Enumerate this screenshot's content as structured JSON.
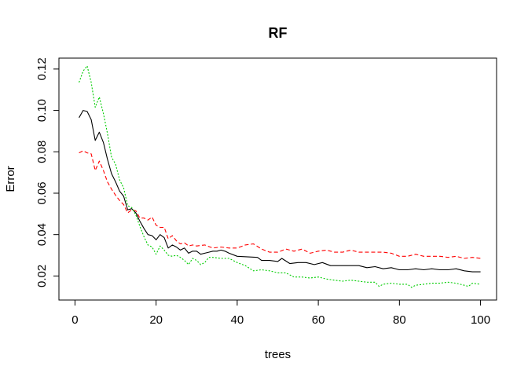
{
  "chart_data": {
    "type": "line",
    "title": "RF",
    "xlabel": "trees",
    "ylabel": "Error",
    "xlim": [
      -3.96,
      103.96
    ],
    "ylim": [
      0.00838,
      0.12527
    ],
    "x_ticks": [
      0,
      20,
      40,
      60,
      80,
      100
    ],
    "x_tick_labels": [
      "0",
      "20",
      "40",
      "60",
      "80",
      "100"
    ],
    "y_ticks": [
      0.02,
      0.04,
      0.06,
      0.08,
      0.1,
      0.12
    ],
    "y_tick_labels": [
      "0.02",
      "0.04",
      "0.06",
      "0.08",
      "0.10",
      "0.12"
    ],
    "grid": false,
    "legend": "none",
    "series": [
      {
        "color": "#000000",
        "dash": "solid",
        "points": [
          [
            1,
            0.0965
          ],
          [
            2,
            0.1
          ],
          [
            3,
            0.0995
          ],
          [
            4,
            0.0955
          ],
          [
            5,
            0.0855
          ],
          [
            6,
            0.0895
          ],
          [
            7,
            0.0845
          ],
          [
            8,
            0.0765
          ],
          [
            9,
            0.0695
          ],
          [
            10,
            0.0655
          ],
          [
            11,
            0.061
          ],
          [
            12,
            0.0585
          ],
          [
            13,
            0.052
          ],
          [
            14,
            0.0525
          ],
          [
            15,
            0.0505
          ],
          [
            16,
            0.0465
          ],
          [
            17,
            0.043
          ],
          [
            18,
            0.04
          ],
          [
            19,
            0.0395
          ],
          [
            20,
            0.0375
          ],
          [
            21,
            0.04
          ],
          [
            22,
            0.0385
          ],
          [
            23,
            0.0335
          ],
          [
            24,
            0.035
          ],
          [
            25,
            0.034
          ],
          [
            26,
            0.0325
          ],
          [
            27,
            0.0335
          ],
          [
            28,
            0.031
          ],
          [
            29,
            0.032
          ],
          [
            30,
            0.032
          ],
          [
            31,
            0.0305
          ],
          [
            32,
            0.031
          ],
          [
            33,
            0.0315
          ],
          [
            34,
            0.032
          ],
          [
            35,
            0.032
          ],
          [
            36,
            0.0325
          ],
          [
            37,
            0.032
          ],
          [
            38,
            0.031
          ],
          [
            40,
            0.0295
          ],
          [
            45,
            0.029
          ],
          [
            46,
            0.0275
          ],
          [
            48,
            0.0275
          ],
          [
            50,
            0.027
          ],
          [
            51,
            0.0285
          ],
          [
            53,
            0.026
          ],
          [
            55,
            0.0265
          ],
          [
            57,
            0.0265
          ],
          [
            59,
            0.0255
          ],
          [
            61,
            0.0265
          ],
          [
            63,
            0.025
          ],
          [
            65,
            0.025
          ],
          [
            67,
            0.025
          ],
          [
            70,
            0.025
          ],
          [
            72,
            0.024
          ],
          [
            74,
            0.0245
          ],
          [
            76,
            0.0235
          ],
          [
            78,
            0.024
          ],
          [
            80,
            0.023
          ],
          [
            82,
            0.023
          ],
          [
            84,
            0.0235
          ],
          [
            86,
            0.023
          ],
          [
            88,
            0.0235
          ],
          [
            90,
            0.023
          ],
          [
            92,
            0.023
          ],
          [
            94,
            0.0235
          ],
          [
            96,
            0.0225
          ],
          [
            98,
            0.022
          ],
          [
            100,
            0.022
          ]
        ]
      },
      {
        "color": "#ff0000",
        "dash": "dashed",
        "points": [
          [
            1,
            0.0795
          ],
          [
            2,
            0.0805
          ],
          [
            3,
            0.0795
          ],
          [
            4,
            0.079
          ],
          [
            5,
            0.071
          ],
          [
            6,
            0.0755
          ],
          [
            7,
            0.071
          ],
          [
            8,
            0.0655
          ],
          [
            9,
            0.062
          ],
          [
            10,
            0.059
          ],
          [
            11,
            0.0565
          ],
          [
            12,
            0.0545
          ],
          [
            13,
            0.0505
          ],
          [
            14,
            0.052
          ],
          [
            15,
            0.0515
          ],
          [
            16,
            0.048
          ],
          [
            17,
            0.048
          ],
          [
            18,
            0.047
          ],
          [
            19,
            0.0485
          ],
          [
            20,
            0.0445
          ],
          [
            21,
            0.0435
          ],
          [
            22,
            0.0435
          ],
          [
            23,
            0.038
          ],
          [
            24,
            0.0395
          ],
          [
            25,
            0.037
          ],
          [
            26,
            0.0355
          ],
          [
            27,
            0.036
          ],
          [
            28,
            0.0345
          ],
          [
            29,
            0.035
          ],
          [
            30,
            0.0345
          ],
          [
            32,
            0.035
          ],
          [
            34,
            0.0335
          ],
          [
            36,
            0.034
          ],
          [
            38,
            0.0335
          ],
          [
            40,
            0.0335
          ],
          [
            42,
            0.035
          ],
          [
            44,
            0.0355
          ],
          [
            46,
            0.033
          ],
          [
            48,
            0.0315
          ],
          [
            50,
            0.0315
          ],
          [
            52,
            0.033
          ],
          [
            54,
            0.032
          ],
          [
            56,
            0.033
          ],
          [
            58,
            0.031
          ],
          [
            60,
            0.032
          ],
          [
            62,
            0.0325
          ],
          [
            64,
            0.0315
          ],
          [
            66,
            0.0315
          ],
          [
            68,
            0.0325
          ],
          [
            70,
            0.0315
          ],
          [
            72,
            0.0315
          ],
          [
            74,
            0.0315
          ],
          [
            76,
            0.0315
          ],
          [
            78,
            0.031
          ],
          [
            80,
            0.0295
          ],
          [
            82,
            0.0295
          ],
          [
            84,
            0.0305
          ],
          [
            86,
            0.0295
          ],
          [
            88,
            0.0295
          ],
          [
            90,
            0.0295
          ],
          [
            92,
            0.029
          ],
          [
            94,
            0.0295
          ],
          [
            96,
            0.0285
          ],
          [
            98,
            0.029
          ],
          [
            100,
            0.0285
          ]
        ]
      },
      {
        "color": "#00cd00",
        "dash": "dotted",
        "points": [
          [
            1,
            0.1135
          ],
          [
            2,
            0.119
          ],
          [
            3,
            0.1215
          ],
          [
            4,
            0.1135
          ],
          [
            5,
            0.1015
          ],
          [
            6,
            0.1065
          ],
          [
            7,
            0.0985
          ],
          [
            8,
            0.089
          ],
          [
            9,
            0.0775
          ],
          [
            10,
            0.074
          ],
          [
            11,
            0.0665
          ],
          [
            12,
            0.0625
          ],
          [
            13,
            0.054
          ],
          [
            14,
            0.053
          ],
          [
            15,
            0.0495
          ],
          [
            16,
            0.044
          ],
          [
            17,
            0.039
          ],
          [
            18,
            0.035
          ],
          [
            19,
            0.034
          ],
          [
            20,
            0.0305
          ],
          [
            21,
            0.0345
          ],
          [
            22,
            0.0325
          ],
          [
            23,
            0.03
          ],
          [
            24,
            0.0295
          ],
          [
            25,
            0.03
          ],
          [
            26,
            0.029
          ],
          [
            27,
            0.0275
          ],
          [
            28,
            0.0255
          ],
          [
            29,
            0.0285
          ],
          [
            30,
            0.0275
          ],
          [
            31,
            0.0255
          ],
          [
            32,
            0.0265
          ],
          [
            33,
            0.029
          ],
          [
            34,
            0.029
          ],
          [
            36,
            0.0285
          ],
          [
            38,
            0.0285
          ],
          [
            40,
            0.0265
          ],
          [
            42,
            0.025
          ],
          [
            44,
            0.0225
          ],
          [
            46,
            0.023
          ],
          [
            48,
            0.0225
          ],
          [
            50,
            0.0215
          ],
          [
            52,
            0.0215
          ],
          [
            54,
            0.0195
          ],
          [
            56,
            0.0195
          ],
          [
            58,
            0.019
          ],
          [
            60,
            0.0195
          ],
          [
            62,
            0.0185
          ],
          [
            64,
            0.018
          ],
          [
            66,
            0.0175
          ],
          [
            68,
            0.018
          ],
          [
            70,
            0.0175
          ],
          [
            72,
            0.017
          ],
          [
            74,
            0.017
          ],
          [
            75,
            0.015
          ],
          [
            76,
            0.016
          ],
          [
            78,
            0.0165
          ],
          [
            80,
            0.016
          ],
          [
            82,
            0.016
          ],
          [
            83,
            0.0145
          ],
          [
            84,
            0.0155
          ],
          [
            86,
            0.016
          ],
          [
            88,
            0.0165
          ],
          [
            90,
            0.0165
          ],
          [
            92,
            0.017
          ],
          [
            94,
            0.0165
          ],
          [
            96,
            0.0155
          ],
          [
            97,
            0.015
          ],
          [
            98,
            0.0165
          ],
          [
            100,
            0.016
          ]
        ]
      }
    ]
  }
}
